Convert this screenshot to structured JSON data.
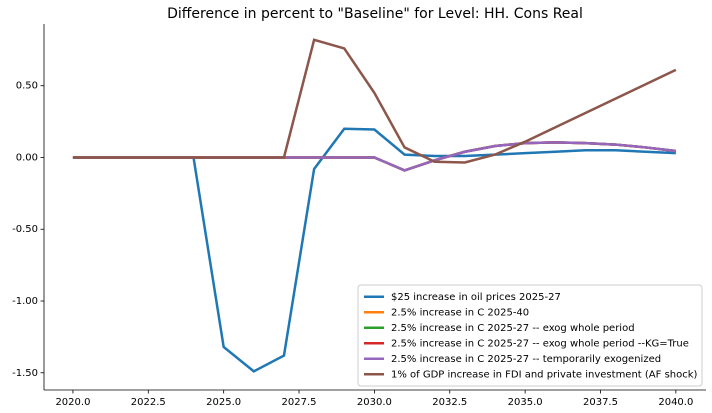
{
  "chart_data": {
    "type": "line",
    "title": "Difference in percent to \"Baseline\" for Level: HH. Cons Real",
    "x": [
      2020,
      2021,
      2022,
      2023,
      2024,
      2025,
      2026,
      2027,
      2028,
      2029,
      2030,
      2031,
      2032,
      2033,
      2034,
      2035,
      2036,
      2037,
      2038,
      2039,
      2040
    ],
    "series": [
      {
        "name": "$25 increase in oil prices 2025-27",
        "color": "#1f77b4",
        "values": [
          0,
          0,
          0,
          0,
          0,
          -1.32,
          -1.49,
          -1.38,
          -0.08,
          0.2,
          0.195,
          0.02,
          0.01,
          0.01,
          0.02,
          0.03,
          0.04,
          0.05,
          0.05,
          0.04,
          0.03
        ]
      },
      {
        "name": "2.5% increase in C 2025-40",
        "color": "#ff7f0e",
        "values": [
          0,
          0,
          0,
          0,
          0,
          0,
          0,
          0,
          0,
          0,
          0,
          -0.09,
          -0.02,
          0.04,
          0.08,
          0.1,
          0.105,
          0.1,
          0.09,
          0.07,
          0.045
        ]
      },
      {
        "name": "2.5% increase in C 2025-27 -- exog whole period",
        "color": "#2ca02c",
        "values": [
          0,
          0,
          0,
          0,
          0,
          0,
          0,
          0,
          0,
          0,
          0,
          -0.09,
          -0.02,
          0.04,
          0.08,
          0.1,
          0.105,
          0.1,
          0.09,
          0.07,
          0.045
        ]
      },
      {
        "name": "2.5% increase in C 2025-27 -- exog whole period --KG=True",
        "color": "#d62728",
        "values": [
          0,
          0,
          0,
          0,
          0,
          0,
          0,
          0,
          0,
          0,
          0,
          -0.09,
          -0.02,
          0.04,
          0.08,
          0.1,
          0.105,
          0.1,
          0.09,
          0.07,
          0.045
        ]
      },
      {
        "name": "2.5% increase in C 2025-27 -- temporarily exogenized",
        "color": "#9467bd",
        "values": [
          0,
          0,
          0,
          0,
          0,
          0,
          0,
          0,
          0,
          0,
          0,
          -0.09,
          -0.02,
          0.04,
          0.08,
          0.1,
          0.105,
          0.1,
          0.09,
          0.07,
          0.045
        ]
      },
      {
        "name": "1% of GDP increase in FDI and private investment (AF shock)",
        "color": "#8c564b",
        "values": [
          0,
          0,
          0,
          0,
          0,
          0,
          0,
          0,
          0.82,
          0.76,
          0.45,
          0.07,
          -0.03,
          -0.035,
          0.02,
          0.11,
          0.21,
          0.31,
          0.41,
          0.51,
          0.61
        ]
      }
    ],
    "xlim": [
      2019.04,
      2041.0
    ],
    "ylim": [
      -1.62,
      0.93
    ],
    "xticks": [
      {
        "value": 2020,
        "label": "2020.0"
      },
      {
        "value": 2022.5,
        "label": "2022.5"
      },
      {
        "value": 2025,
        "label": "2025.0"
      },
      {
        "value": 2027.5,
        "label": "2027.5"
      },
      {
        "value": 2030,
        "label": "2030.0"
      },
      {
        "value": 2032.5,
        "label": "2032.5"
      },
      {
        "value": 2035,
        "label": "2035.0"
      },
      {
        "value": 2037.5,
        "label": "2037.5"
      },
      {
        "value": 2040,
        "label": "2040.0"
      }
    ],
    "yticks": [
      {
        "value": -1.5,
        "label": "-1.50"
      },
      {
        "value": -1,
        "label": "-1.00"
      },
      {
        "value": -0.5,
        "label": "-0.50"
      },
      {
        "value": 0,
        "label": "0.00"
      },
      {
        "value": 0.5,
        "label": "0.50"
      }
    ],
    "legend": "lower right"
  }
}
